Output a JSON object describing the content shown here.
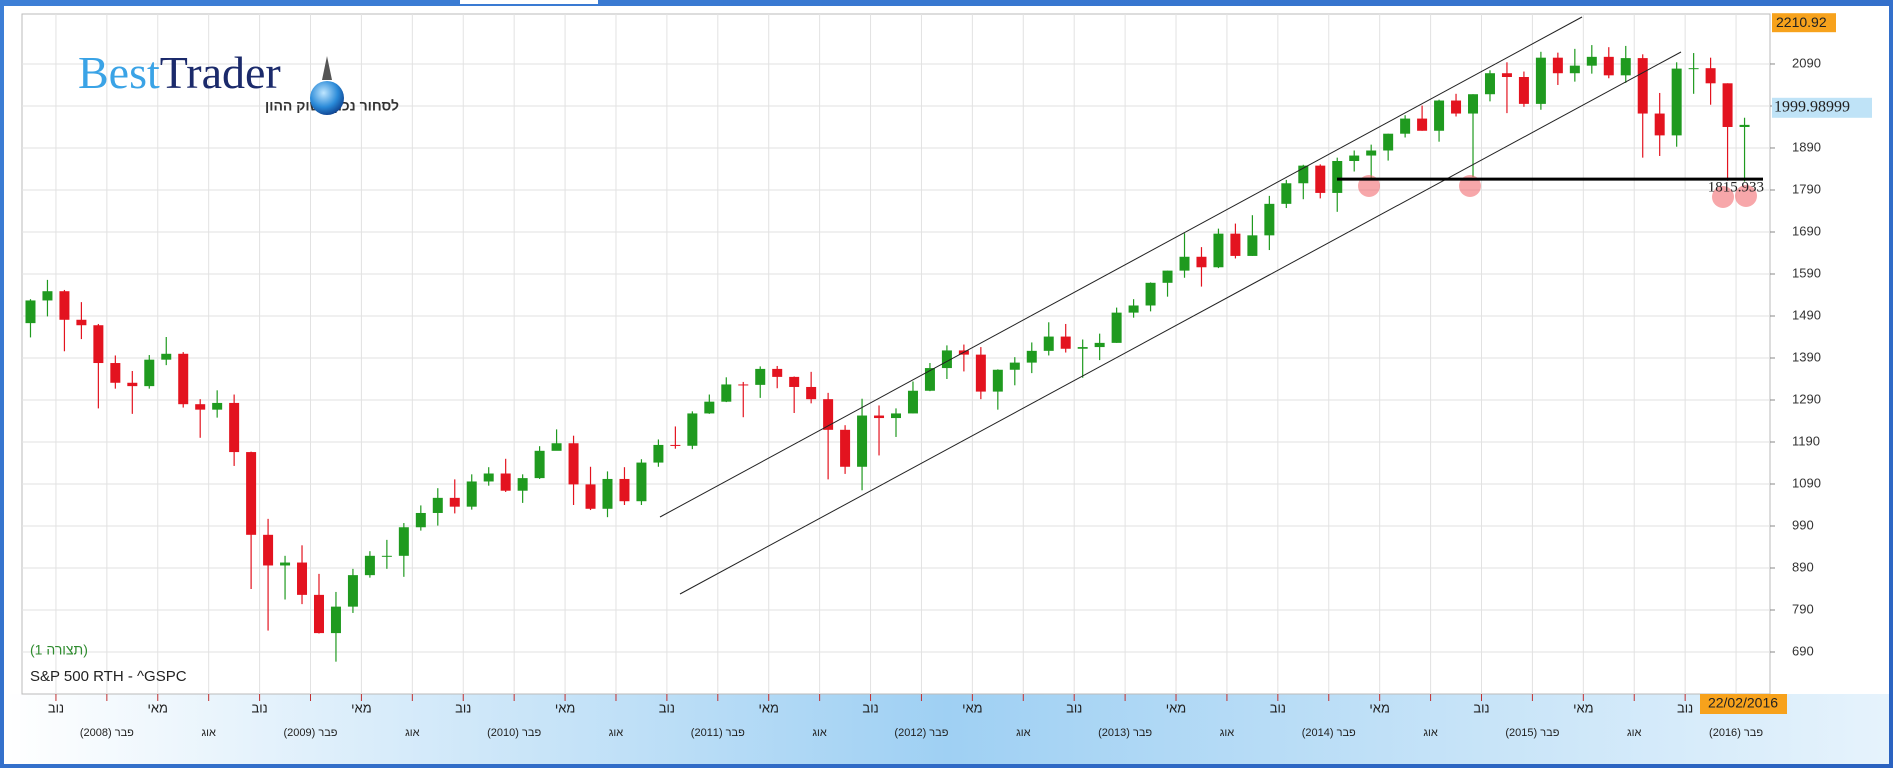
{
  "logo": {
    "brand_a": "Best",
    "brand_b": "Trader",
    "tagline": "לסחור נכון בשוק ההון"
  },
  "chart_data": {
    "type": "candlestick",
    "title": "S&P 500 RTH - ^GSPC",
    "subtitle": "(תצורה 1)",
    "up_color": "#1f9a1f",
    "down_color": "#e3131f",
    "x": [
      "2007-09",
      "2007-10",
      "2007-11",
      "2007-12",
      "2008-01",
      "2008-02",
      "2008-03",
      "2008-04",
      "2008-05",
      "2008-06",
      "2008-07",
      "2008-08",
      "2008-09",
      "2008-10",
      "2008-11",
      "2008-12",
      "2009-01",
      "2009-02",
      "2009-03",
      "2009-04",
      "2009-05",
      "2009-06",
      "2009-07",
      "2009-08",
      "2009-09",
      "2009-10",
      "2009-11",
      "2009-12",
      "2010-01",
      "2010-02",
      "2010-03",
      "2010-04",
      "2010-05",
      "2010-06",
      "2010-07",
      "2010-08",
      "2010-09",
      "2010-10",
      "2010-11",
      "2010-12",
      "2011-01",
      "2011-02",
      "2011-03",
      "2011-04",
      "2011-05",
      "2011-06",
      "2011-07",
      "2011-08",
      "2011-09",
      "2011-10",
      "2011-11",
      "2011-12",
      "2012-01",
      "2012-02",
      "2012-03",
      "2012-04",
      "2012-05",
      "2012-06",
      "2012-07",
      "2012-08",
      "2012-09",
      "2012-10",
      "2012-11",
      "2012-12",
      "2013-01",
      "2013-02",
      "2013-03",
      "2013-04",
      "2013-05",
      "2013-06",
      "2013-07",
      "2013-08",
      "2013-09",
      "2013-10",
      "2013-11",
      "2013-12",
      "2014-01",
      "2014-02",
      "2014-03",
      "2014-04",
      "2014-05",
      "2014-06",
      "2014-07",
      "2014-08",
      "2014-09",
      "2014-10",
      "2014-11",
      "2014-12",
      "2015-01",
      "2015-02",
      "2015-03",
      "2015-04",
      "2015-05",
      "2015-06",
      "2015-07",
      "2015-08",
      "2015-09",
      "2015-10",
      "2015-11",
      "2015-12",
      "2016-01",
      "2016-02"
    ],
    "open": [
      1473,
      1527,
      1549,
      1481,
      1468,
      1378,
      1331,
      1323,
      1386,
      1400,
      1280,
      1267,
      1283,
      1166,
      969,
      896,
      903,
      826,
      735,
      798,
      873,
      919,
      919,
      987,
      1021,
      1057,
      1036,
      1096,
      1115,
      1074,
      1104,
      1169,
      1187,
      1089,
      1031,
      1102,
      1049,
      1141,
      1183,
      1181,
      1258,
      1286,
      1327,
      1326,
      1364,
      1345,
      1321,
      1292,
      1219,
      1131,
      1253,
      1247,
      1258,
      1312,
      1366,
      1408,
      1398,
      1310,
      1362,
      1379,
      1407,
      1441,
      1412,
      1416,
      1426,
      1498,
      1515,
      1569,
      1598,
      1631,
      1606,
      1686,
      1633,
      1682,
      1757,
      1806,
      1848,
      1783,
      1859,
      1872,
      1884,
      1924,
      1960,
      1931,
      2003,
      1972,
      2018,
      2068,
      2059,
      1995,
      2105,
      2068,
      2086,
      2107,
      2063,
      2104,
      1972,
      1920,
      2079,
      2080,
      2044,
      1940
    ],
    "high": [
      1530,
      1576,
      1552,
      1523,
      1471,
      1396,
      1359,
      1397,
      1440,
      1404,
      1292,
      1313,
      1303,
      1167,
      1007,
      919,
      944,
      876,
      833,
      888,
      930,
      957,
      997,
      1039,
      1080,
      1101,
      1113,
      1130,
      1150,
      1113,
      1180,
      1220,
      1205,
      1131,
      1120,
      1130,
      1149,
      1196,
      1227,
      1263,
      1303,
      1344,
      1333,
      1370,
      1371,
      1346,
      1357,
      1307,
      1230,
      1293,
      1277,
      1270,
      1334,
      1378,
      1420,
      1422,
      1416,
      1363,
      1392,
      1427,
      1475,
      1471,
      1434,
      1448,
      1510,
      1530,
      1570,
      1598,
      1687,
      1654,
      1698,
      1710,
      1730,
      1776,
      1814,
      1850,
      1851,
      1867,
      1884,
      1898,
      1924,
      1968,
      1991,
      2005,
      2019,
      2018,
      2075,
      2094,
      2072,
      2119,
      2117,
      2126,
      2135,
      2130,
      2133,
      2113,
      2021,
      2094,
      2116,
      2105,
      2044,
      1962
    ],
    "low": [
      1439,
      1489,
      1406,
      1435,
      1270,
      1317,
      1257,
      1317,
      1373,
      1272,
      1200,
      1248,
      1133,
      840,
      741,
      815,
      804,
      734,
      667,
      783,
      867,
      888,
      869,
      979,
      991,
      1020,
      1029,
      1086,
      1071,
      1045,
      1102,
      1170,
      1040,
      1028,
      1011,
      1040,
      1040,
      1131,
      1174,
      1173,
      1257,
      1285,
      1249,
      1295,
      1318,
      1259,
      1282,
      1101,
      1114,
      1075,
      1158,
      1202,
      1258,
      1311,
      1340,
      1358,
      1292,
      1267,
      1325,
      1354,
      1396,
      1403,
      1343,
      1385,
      1426,
      1486,
      1501,
      1536,
      1581,
      1560,
      1604,
      1627,
      1633,
      1647,
      1747,
      1768,
      1770,
      1738,
      1834,
      1815,
      1860,
      1915,
      1931,
      1905,
      1965,
      1821,
      2001,
      1973,
      1988,
      1981,
      2040,
      2048,
      2067,
      2056,
      2045,
      1867,
      1871,
      1893,
      2019,
      1993,
      1812,
      1810
    ],
    "close": [
      1527,
      1549,
      1481,
      1468,
      1378,
      1331,
      1323,
      1386,
      1400,
      1280,
      1267,
      1283,
      1166,
      969,
      896,
      903,
      826,
      735,
      798,
      873,
      919,
      919,
      987,
      1021,
      1057,
      1036,
      1096,
      1115,
      1074,
      1104,
      1169,
      1187,
      1089,
      1031,
      1102,
      1049,
      1141,
      1183,
      1181,
      1258,
      1286,
      1327,
      1326,
      1364,
      1345,
      1321,
      1292,
      1219,
      1131,
      1253,
      1247,
      1258,
      1312,
      1366,
      1408,
      1398,
      1310,
      1362,
      1379,
      1407,
      1441,
      1412,
      1416,
      1426,
      1498,
      1515,
      1569,
      1598,
      1631,
      1606,
      1686,
      1633,
      1682,
      1757,
      1806,
      1848,
      1783,
      1859,
      1872,
      1884,
      1924,
      1960,
      1931,
      2003,
      1972,
      2018,
      2068,
      2059,
      1995,
      2105,
      2068,
      2086,
      2107,
      2063,
      2104,
      1972,
      1920,
      2079,
      2080,
      2044,
      1940,
      1945
    ],
    "xlim": [
      "2007-09",
      "2016-04"
    ],
    "ylim": [
      590,
      2209
    ],
    "yticks": [
      690,
      790,
      890,
      990,
      1090,
      1190,
      1290,
      1390,
      1490,
      1590,
      1690,
      1790,
      1890,
      1990,
      2090
    ],
    "xticks": [
      {
        "value": "2007-11",
        "label": "נוב"
      },
      {
        "value": "2008-02",
        "label": "פבר (2008)"
      },
      {
        "value": "2008-05",
        "label": "מאי"
      },
      {
        "value": "2008-08",
        "label": "אוג"
      },
      {
        "value": "2008-11",
        "label": "נוב"
      },
      {
        "value": "2009-02",
        "label": "פבר (2009)"
      },
      {
        "value": "2009-05",
        "label": "מאי"
      },
      {
        "value": "2009-08",
        "label": "אוג"
      },
      {
        "value": "2009-11",
        "label": "נוב"
      },
      {
        "value": "2010-02",
        "label": "פבר (2010)"
      },
      {
        "value": "2010-05",
        "label": "מאי"
      },
      {
        "value": "2010-08",
        "label": "אוג"
      },
      {
        "value": "2010-11",
        "label": "נוב"
      },
      {
        "value": "2011-02",
        "label": "פבר (2011)"
      },
      {
        "value": "2011-05",
        "label": "מאי"
      },
      {
        "value": "2011-08",
        "label": "אוג"
      },
      {
        "value": "2011-11",
        "label": "נוב"
      },
      {
        "value": "2012-02",
        "label": "פבר (2012)"
      },
      {
        "value": "2012-05",
        "label": "מאי"
      },
      {
        "value": "2012-08",
        "label": "אוג"
      },
      {
        "value": "2012-11",
        "label": "נוב"
      },
      {
        "value": "2013-02",
        "label": "פבר (2013)"
      },
      {
        "value": "2013-05",
        "label": "מאי"
      },
      {
        "value": "2013-08",
        "label": "אוג"
      },
      {
        "value": "2013-11",
        "label": "נוב"
      },
      {
        "value": "2014-02",
        "label": "פבר (2014)"
      },
      {
        "value": "2014-05",
        "label": "מאי"
      },
      {
        "value": "2014-08",
        "label": "אוג"
      },
      {
        "value": "2014-11",
        "label": "נוב"
      },
      {
        "value": "2015-02",
        "label": "פבר (2015)"
      },
      {
        "value": "2015-05",
        "label": "מאי"
      },
      {
        "value": "2015-08",
        "label": "אוג"
      },
      {
        "value": "2015-11",
        "label": "נוב"
      },
      {
        "value": "2016-02",
        "label": "פבר (2016)"
      }
    ],
    "grid": true,
    "high_label": 2210.92,
    "last_price": 1999.98999,
    "support": 1815.933,
    "last_date": "22/02/2016"
  }
}
